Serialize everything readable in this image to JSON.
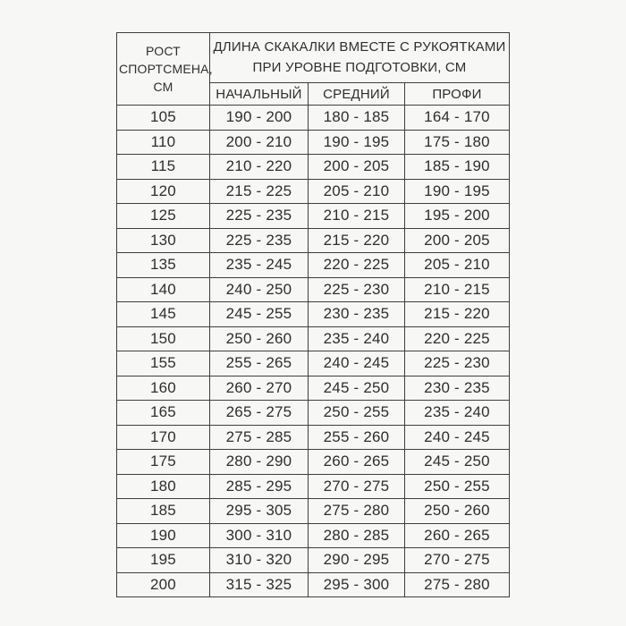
{
  "page": {
    "background_color": "#f7f7f5",
    "border_color": "#3e3e3e",
    "text_color": "#2e2e2e"
  },
  "table": {
    "height_header": "РОСТ СПОРТСМЕНА, СМ",
    "main_header_line1": "ДЛИНА СКАКАЛКИ ВМЕСТЕ С РУКОЯТКАМИ",
    "main_header_line2": "ПРИ УРОВНЕ ПОДГОТОВКИ, СМ",
    "level_headers": [
      "НАЧАЛЬНЫЙ",
      "СРЕДНИЙ",
      "ПРОФИ"
    ],
    "rows": [
      {
        "height": "105",
        "beginner": "190 - 200",
        "intermediate": "180 - 185",
        "pro": "164 - 170"
      },
      {
        "height": "110",
        "beginner": "200 - 210",
        "intermediate": "190 - 195",
        "pro": "175 - 180"
      },
      {
        "height": "115",
        "beginner": "210 - 220",
        "intermediate": "200 - 205",
        "pro": "185 - 190"
      },
      {
        "height": "120",
        "beginner": "215 - 225",
        "intermediate": "205 - 210",
        "pro": "190 - 195"
      },
      {
        "height": "125",
        "beginner": "225 - 235",
        "intermediate": "210 - 215",
        "pro": "195 - 200"
      },
      {
        "height": "130",
        "beginner": "225 - 235",
        "intermediate": "215 - 220",
        "pro": "200 - 205"
      },
      {
        "height": "135",
        "beginner": "235 - 245",
        "intermediate": "220 - 225",
        "pro": "205 - 210"
      },
      {
        "height": "140",
        "beginner": "240 - 250",
        "intermediate": "225 - 230",
        "pro": "210 - 215"
      },
      {
        "height": "145",
        "beginner": "245 - 255",
        "intermediate": "230 - 235",
        "pro": "215 - 220"
      },
      {
        "height": "150",
        "beginner": "250 - 260",
        "intermediate": "235 - 240",
        "pro": "220 - 225"
      },
      {
        "height": "155",
        "beginner": "255 - 265",
        "intermediate": "240 - 245",
        "pro": "225 - 230"
      },
      {
        "height": "160",
        "beginner": "260 - 270",
        "intermediate": "245 - 250",
        "pro": "230 - 235"
      },
      {
        "height": "165",
        "beginner": "265 - 275",
        "intermediate": "250 - 255",
        "pro": "235 - 240"
      },
      {
        "height": "170",
        "beginner": "275 - 285",
        "intermediate": "255 - 260",
        "pro": "240 - 245"
      },
      {
        "height": "175",
        "beginner": "280 - 290",
        "intermediate": "260 - 265",
        "pro": "245 - 250"
      },
      {
        "height": "180",
        "beginner": "285 - 295",
        "intermediate": "270 - 275",
        "pro": "250 - 255"
      },
      {
        "height": "185",
        "beginner": "295 - 305",
        "intermediate": "275 - 280",
        "pro": "250 - 260"
      },
      {
        "height": "190",
        "beginner": "300 - 310",
        "intermediate": "280 - 285",
        "pro": "260 - 265"
      },
      {
        "height": "195",
        "beginner": "310 - 320",
        "intermediate": "290 - 295",
        "pro": "270 - 275"
      },
      {
        "height": "200",
        "beginner": "315 - 325",
        "intermediate": "295 - 300",
        "pro": "275 - 280"
      }
    ]
  }
}
